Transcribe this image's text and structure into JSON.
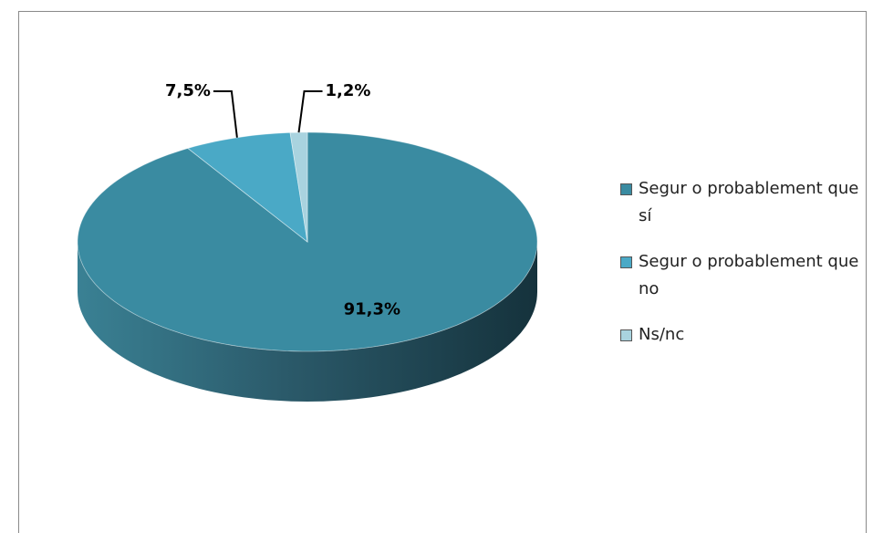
{
  "chart_data": {
    "type": "pie",
    "categories": [
      "Segur o probablement que sí",
      "Segur o probablement que no",
      "Ns/nc"
    ],
    "values": [
      91.3,
      7.5,
      1.2
    ],
    "value_labels": [
      "91,3%",
      "7,5%",
      "1,2%"
    ],
    "colors": [
      "#3a8ba1",
      "#4aa9c6",
      "#a9d3df"
    ],
    "legend": "right"
  }
}
